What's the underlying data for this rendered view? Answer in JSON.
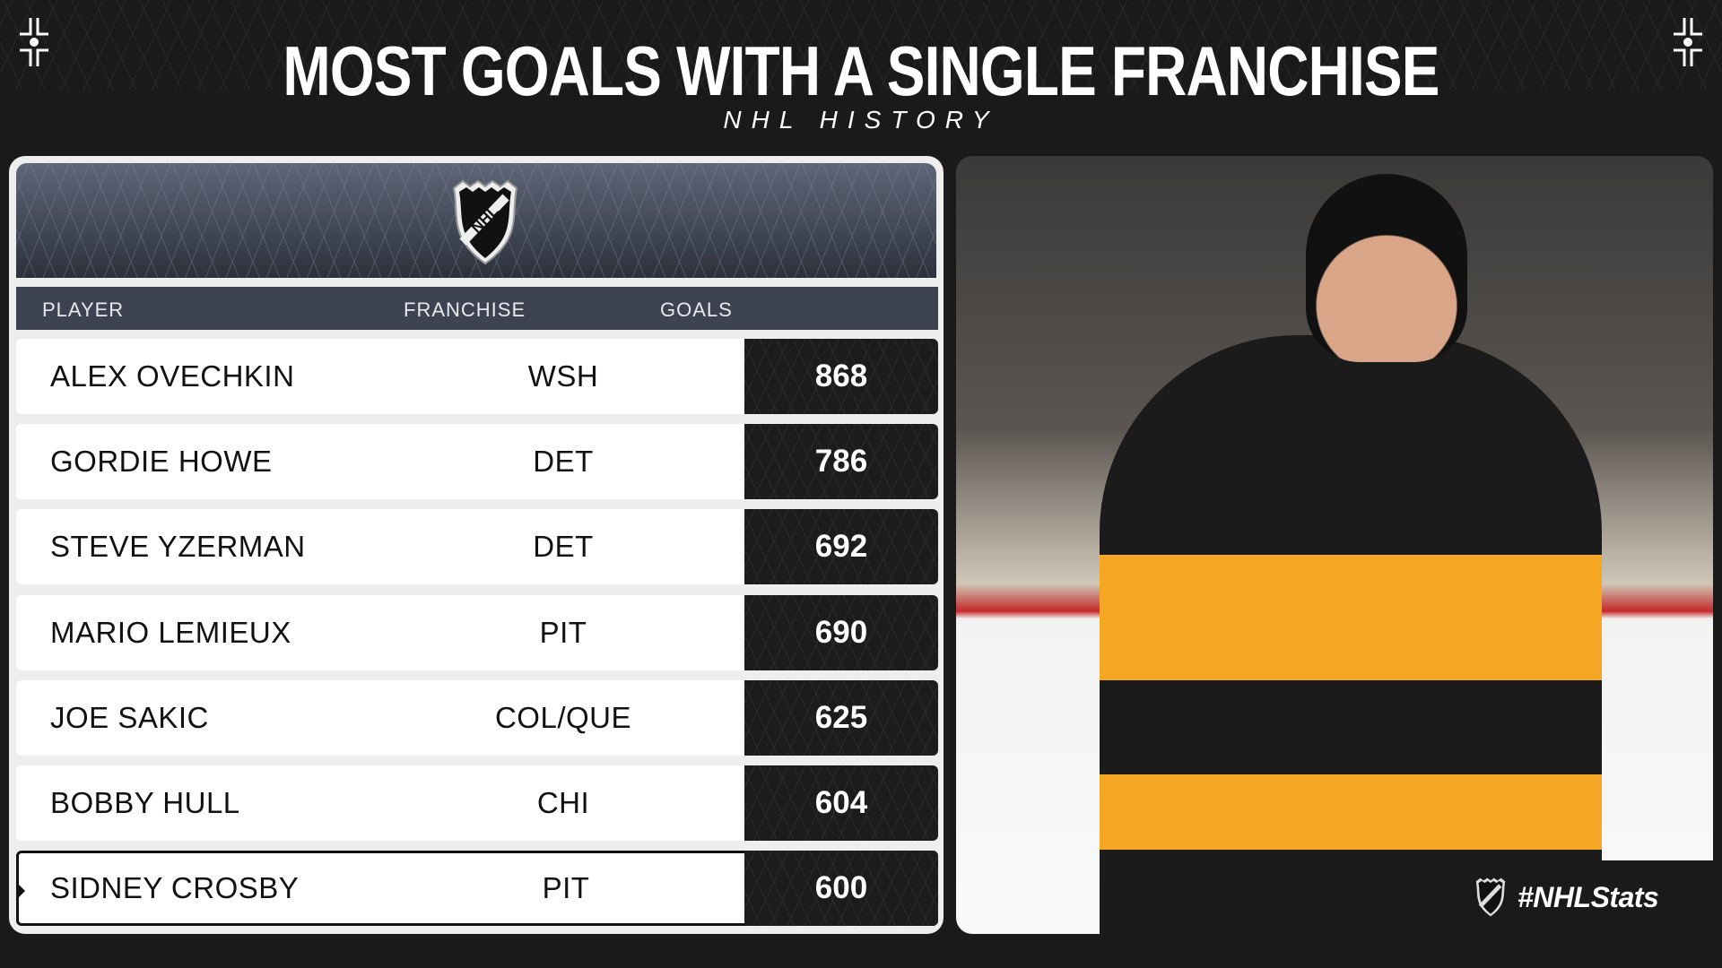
{
  "header": {
    "title": "MOST GOALS WITH A SINGLE FRANCHISE",
    "subtitle": "NHL HISTORY"
  },
  "table": {
    "columns": [
      "PLAYER",
      "FRANCHISE",
      "GOALS"
    ],
    "rows": [
      {
        "player": "ALEX OVECHKIN",
        "franchise": "WSH",
        "goals": "868"
      },
      {
        "player": "GORDIE HOWE",
        "franchise": "DET",
        "goals": "786"
      },
      {
        "player": "STEVE YZERMAN",
        "franchise": "DET",
        "goals": "692"
      },
      {
        "player": "MARIO LEMIEUX",
        "franchise": "PIT",
        "goals": "690"
      },
      {
        "player": "JOE SAKIC",
        "franchise": "COL/QUE",
        "goals": "625"
      },
      {
        "player": "BOBBY HULL",
        "franchise": "CHI",
        "goals": "604"
      },
      {
        "player": "SIDNEY CROSBY",
        "franchise": "PIT",
        "goals": "600",
        "highlighted": true
      }
    ]
  },
  "logo_text": "NHL",
  "hashtag": "#NHLStats",
  "colors": {
    "background": "#1a1a1a",
    "column_header": "#3d4350",
    "goals_box": "#1c1c1c",
    "penguins_gold": "#f5a623"
  }
}
